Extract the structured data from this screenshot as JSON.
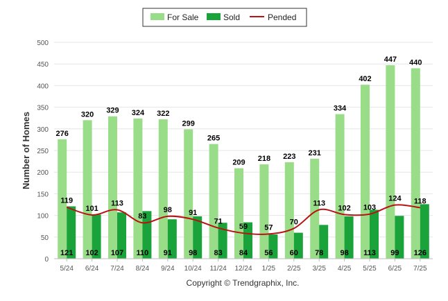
{
  "chart_data": {
    "type": "bar",
    "title": "",
    "xlabel": "",
    "ylabel": "Number of Homes",
    "ylim": [
      0,
      500
    ],
    "yticks": [
      0,
      50,
      100,
      150,
      200,
      250,
      300,
      350,
      400,
      450,
      500
    ],
    "grid": true,
    "legend_position": "top-center",
    "categories": [
      "5/24",
      "6/24",
      "7/24",
      "8/24",
      "9/24",
      "10/24",
      "11/24",
      "12/24",
      "1/25",
      "2/25",
      "3/25",
      "4/25",
      "5/25",
      "6/25",
      "7/25"
    ],
    "series": [
      {
        "name": "For Sale",
        "kind": "bar",
        "color": "#99dd88",
        "values": [
          276,
          320,
          329,
          324,
          322,
          299,
          265,
          209,
          218,
          223,
          231,
          334,
          402,
          447,
          440
        ]
      },
      {
        "name": "Sold",
        "kind": "bar",
        "color": "#1aa33a",
        "values": [
          121,
          102,
          107,
          110,
          91,
          98,
          83,
          84,
          56,
          60,
          78,
          98,
          113,
          99,
          126
        ]
      },
      {
        "name": "Pended",
        "kind": "line",
        "color": "#bb1111",
        "values": [
          119,
          101,
          113,
          83,
          98,
          91,
          71,
          59,
          57,
          70,
          113,
          102,
          103,
          124,
          118
        ]
      }
    ],
    "footer": "Copyright © Trendgraphix, Inc."
  }
}
